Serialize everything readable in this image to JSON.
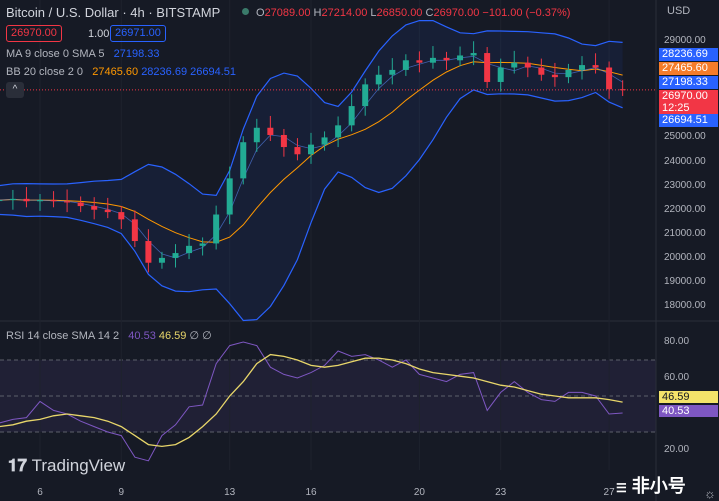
{
  "header": {
    "title": "Bitcoin / U.S. Dollar · 4h · BITSTAMP",
    "o_label": "O",
    "o": "27089.00",
    "h_label": "H",
    "h": "27214.00",
    "l_label": "L",
    "l": "26850.00",
    "c_label": "C",
    "c": "26970.00",
    "change": "−101.00 (−0.37%)",
    "currency": "USD"
  },
  "trade": {
    "sell": "26970.00",
    "spread": "1.00",
    "buy": "26971.00"
  },
  "indicators": {
    "ma_label": "MA 9 close 0 SMA 5",
    "ma_value": "27198.33",
    "bb_label": "BB 20 close 2 0",
    "bb_basis": "27465.60",
    "bb_upper": "28236.69",
    "bb_lower": "26694.51",
    "rsi_label": "RSI 14 close SMA 14 2",
    "rsi_value": "40.53",
    "rsi_sma": "46.59",
    "rsi_extra": "∅ ∅"
  },
  "price_labels": {
    "upper": "28236.69",
    "basis": "27465.60",
    "ma": "27198.33",
    "last": "26970.00",
    "countdown": "12:25",
    "lower": "26694.51"
  },
  "colors": {
    "up": "#22ab94",
    "down": "#f23645",
    "bb": "#2962ff",
    "basis": "#ff9800",
    "rsi": "#7e57c2",
    "rsi_sma": "#e8d66a"
  },
  "brand": {
    "name": "TradingView",
    "watermark": "非小号"
  },
  "chart_data": {
    "type": "candlestick",
    "price_ticks": [
      29000,
      25000,
      24000,
      23000,
      22000,
      21000,
      20000,
      19000,
      18000
    ],
    "rsi_ticks": [
      80,
      60,
      20
    ],
    "x_ticks": [
      "6",
      "9",
      "13",
      "16",
      "20",
      "23",
      "27"
    ],
    "x_tick_days": [
      6,
      9,
      13,
      16,
      20,
      23,
      27
    ],
    "days": [
      4.5,
      5,
      5.5,
      6,
      6.5,
      7,
      7.5,
      8,
      8.5,
      9,
      9.5,
      10,
      10.5,
      11,
      11.5,
      12,
      12.5,
      13,
      13.5,
      14,
      14.5,
      15,
      15.5,
      16,
      16.5,
      17,
      17.5,
      18,
      18.5,
      19,
      19.5,
      20,
      20.5,
      21,
      21.5,
      22,
      22.5,
      23,
      23.5,
      24,
      24.5,
      25,
      25.5,
      26,
      26.5,
      27,
      27.5
    ],
    "close": [
      22400,
      22450,
      22350,
      22400,
      22350,
      22300,
      22150,
      22000,
      21900,
      21600,
      20700,
      19800,
      20000,
      20200,
      20500,
      20600,
      21800,
      23300,
      24800,
      25400,
      25100,
      24600,
      24300,
      24700,
      25000,
      25500,
      26300,
      27200,
      27600,
      27800,
      28200,
      28100,
      28300,
      28200,
      28400,
      28500,
      27300,
      27900,
      28100,
      27900,
      27600,
      27500,
      27800,
      28000,
      27900,
      27000,
      26970
    ],
    "rsi": [
      35,
      37,
      38,
      47,
      42,
      40,
      36,
      33,
      30,
      28,
      16,
      14,
      28,
      34,
      44,
      45,
      68,
      78,
      80,
      78,
      66,
      62,
      60,
      63,
      67,
      75,
      72,
      73,
      70,
      66,
      70,
      62,
      60,
      58,
      62,
      63,
      42,
      52,
      58,
      52,
      48,
      47,
      52,
      52,
      50,
      40,
      40.53
    ],
    "rsi_sma": [
      33,
      34,
      36,
      37,
      39,
      40,
      39,
      38,
      36,
      33,
      28,
      23,
      22,
      23,
      27,
      33,
      40,
      50,
      58,
      68,
      73,
      72,
      70,
      67,
      66,
      67,
      69,
      71,
      71,
      70,
      68,
      65,
      63,
      62,
      61,
      60,
      58,
      56,
      55,
      53,
      51,
      50,
      49,
      49,
      49,
      48,
      46.59
    ],
    "price_range": [
      17500,
      29500
    ],
    "rsi_range": [
      10,
      85
    ]
  }
}
